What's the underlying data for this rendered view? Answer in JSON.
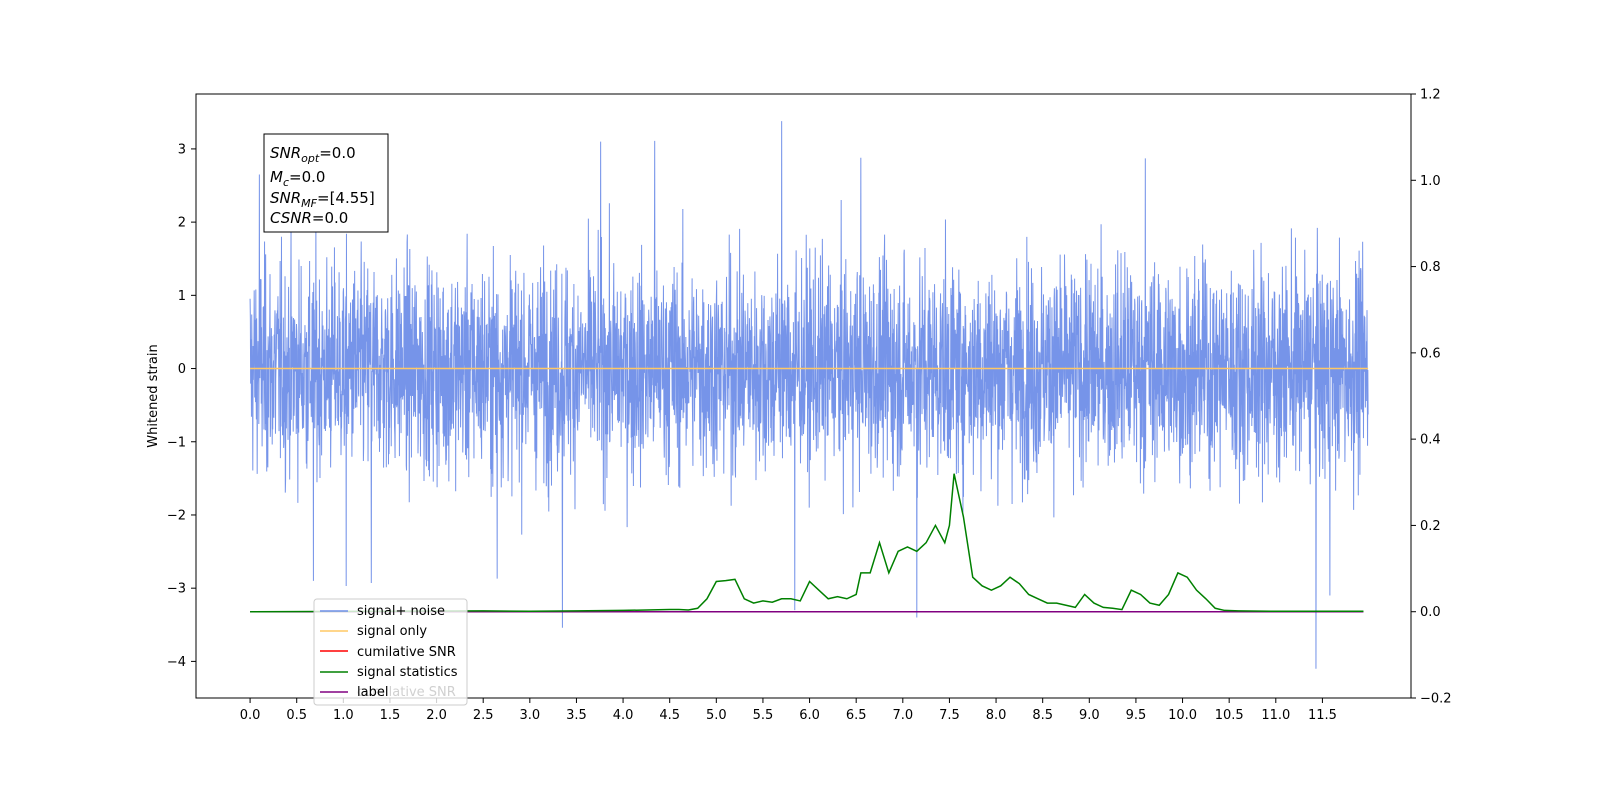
{
  "chart_data": {
    "type": "line",
    "ylabel_left": "Whitened strain",
    "ylim_left": [
      -4.5,
      3.75
    ],
    "ylim_right": [
      -0.2,
      1.2
    ],
    "xlim": [
      -0.58,
      12.45
    ],
    "x_ticks": [
      0.0,
      0.5,
      1.0,
      1.5,
      2.0,
      2.5,
      3.0,
      3.5,
      4.0,
      4.5,
      5.0,
      5.5,
      6.0,
      6.5,
      7.0,
      7.5,
      8.0,
      8.5,
      9.0,
      9.5,
      10.0,
      10.5,
      11.0,
      11.5
    ],
    "x_tick_labels": [
      "0.0",
      "0.5",
      "1.0",
      "1.5",
      "2.0",
      "2.5",
      "3.0",
      "3.5",
      "4.0",
      "4.5",
      "5.0",
      "5.5",
      "6.0",
      "6.5",
      "7.0",
      "7.5",
      "8.0",
      "8.5",
      "9.0",
      "9.5",
      "10.0",
      "10.5",
      "11.0",
      "11.5"
    ],
    "y_left_ticks": [
      3,
      2,
      1,
      0,
      -1,
      -2,
      -3,
      -4
    ],
    "y_left_tick_labels": [
      "3",
      "2",
      "1",
      "0",
      "−1",
      "−2",
      "−3",
      "−4"
    ],
    "y_right_ticks": [
      1.2,
      1.0,
      0.8,
      0.6,
      0.4,
      0.2,
      0.0,
      -0.2
    ],
    "y_right_tick_labels": [
      "1.2",
      "1.0",
      "0.8",
      "0.6",
      "0.4",
      "0.2",
      "0.0",
      "−0.2"
    ],
    "info_box": {
      "snr_opt_base": "SNR",
      "snr_opt_sub": "opt",
      "snr_opt_val": "=0.0",
      "mc_base": "M",
      "mc_sub": "c",
      "mc_val": "=0.0",
      "snr_mf_base": "SNR",
      "snr_mf_sub": "MF",
      "snr_mf_val": "=[4.55]",
      "csnr_base": "CSNR",
      "csnr_val": "=0.0"
    },
    "legend": [
      {
        "label": "signal+ noise",
        "color": "#6f8ee8"
      },
      {
        "label": "signal only",
        "color": "#ffc865"
      },
      {
        "label": "cumilative SNR",
        "color": "#ff0000"
      },
      {
        "label": "signal statistics",
        "color": "#008000"
      },
      {
        "label": "label",
        "color": "#800080"
      }
    ],
    "legend_overlay_text": "cumilative SNR",
    "series": [
      {
        "name": "signal+ noise",
        "axis": "left",
        "color": "#6f8ee8",
        "x_range": [
          0.0,
          11.99
        ],
        "points": 4096,
        "typical_amplitude": 1.35,
        "spikes": [
          {
            "x": 5.7,
            "y": 3.38
          },
          {
            "x": 3.76,
            "y": 3.1
          },
          {
            "x": 4.34,
            "y": 3.11
          },
          {
            "x": 3.35,
            "y": -3.54
          },
          {
            "x": 11.43,
            "y": -4.1
          },
          {
            "x": 7.15,
            "y": -3.4
          },
          {
            "x": 0.1,
            "y": 2.65
          },
          {
            "x": 6.55,
            "y": 2.88
          },
          {
            "x": 9.6,
            "y": 2.87
          },
          {
            "x": 1.03,
            "y": -2.97
          },
          {
            "x": 1.3,
            "y": -2.93
          },
          {
            "x": 5.84,
            "y": -3.3
          },
          {
            "x": 11.58,
            "y": -3.1
          },
          {
            "x": 0.68,
            "y": -2.9
          },
          {
            "x": 2.65,
            "y": -2.87
          }
        ]
      },
      {
        "name": "signal only",
        "axis": "left",
        "color": "#ffc865",
        "x": [
          0.0,
          11.99
        ],
        "y": [
          0.0,
          0.0
        ]
      },
      {
        "name": "signal statistics",
        "axis": "right",
        "color": "#008000",
        "x": [
          0.0,
          2.5,
          3.0,
          3.5,
          4.0,
          4.5,
          4.6,
          4.7,
          4.8,
          4.9,
          5.0,
          5.1,
          5.2,
          5.3,
          5.4,
          5.5,
          5.6,
          5.7,
          5.8,
          5.9,
          6.0,
          6.1,
          6.2,
          6.3,
          6.4,
          6.5,
          6.55,
          6.65,
          6.75,
          6.85,
          6.95,
          7.05,
          7.15,
          7.25,
          7.35,
          7.45,
          7.5,
          7.55,
          7.65,
          7.75,
          7.85,
          7.95,
          8.05,
          8.15,
          8.25,
          8.35,
          8.45,
          8.55,
          8.65,
          8.75,
          8.85,
          8.95,
          9.05,
          9.15,
          9.25,
          9.35,
          9.45,
          9.55,
          9.65,
          9.75,
          9.85,
          9.95,
          10.05,
          10.15,
          10.25,
          10.35,
          10.45,
          10.6,
          11.0,
          11.5,
          11.94
        ],
        "y": [
          0.0,
          0.002,
          0.001,
          0.002,
          0.003,
          0.005,
          0.005,
          0.004,
          0.008,
          0.03,
          0.07,
          0.072,
          0.075,
          0.03,
          0.02,
          0.025,
          0.022,
          0.03,
          0.03,
          0.025,
          0.07,
          0.05,
          0.03,
          0.035,
          0.03,
          0.04,
          0.09,
          0.09,
          0.16,
          0.09,
          0.14,
          0.15,
          0.14,
          0.16,
          0.2,
          0.16,
          0.2,
          0.32,
          0.22,
          0.08,
          0.06,
          0.05,
          0.06,
          0.08,
          0.065,
          0.04,
          0.03,
          0.02,
          0.02,
          0.015,
          0.01,
          0.04,
          0.02,
          0.01,
          0.008,
          0.005,
          0.05,
          0.04,
          0.02,
          0.015,
          0.04,
          0.09,
          0.08,
          0.05,
          0.03,
          0.008,
          0.003,
          0.002,
          0.001,
          0.001,
          0.001
        ]
      },
      {
        "name": "label",
        "axis": "right",
        "color": "#800080",
        "x": [
          0.0,
          11.94
        ],
        "y": [
          0.0,
          0.0
        ]
      }
    ]
  }
}
